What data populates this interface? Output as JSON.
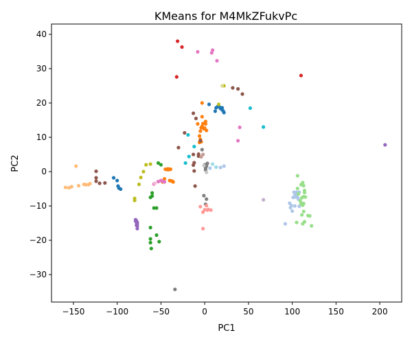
{
  "chart_data": {
    "type": "scatter",
    "title": "KMeans for M4MkZFukvPc",
    "xlabel": "PC1",
    "ylabel": "PC2",
    "xlim": [
      -175,
      225
    ],
    "ylim": [
      -38,
      43
    ],
    "xticks": [
      -150,
      -100,
      -50,
      0,
      50,
      100,
      150,
      200
    ],
    "yticks": [
      -30,
      -20,
      -10,
      0,
      10,
      20,
      30,
      40
    ],
    "grid": false,
    "legend": "none",
    "series": [
      {
        "color": "#1f77b4",
        "points": [
          [
            -104,
            -1.8
          ],
          [
            -100,
            -2.6
          ],
          [
            -99,
            -4.2
          ],
          [
            -98,
            -4.8
          ],
          [
            -96,
            -5.1
          ],
          [
            5,
            19.6
          ],
          [
            12,
            17.6
          ],
          [
            15,
            19.0
          ],
          [
            17,
            18.8
          ],
          [
            18,
            18.4
          ],
          [
            19,
            18.2
          ],
          [
            20,
            18.6
          ],
          [
            21,
            17.7
          ],
          [
            22,
            17.2
          ],
          [
            13,
            18.6
          ]
        ]
      },
      {
        "color": "#ff7f0e",
        "points": [
          [
            -48,
            -3.0
          ],
          [
            -46,
            -2.1
          ],
          [
            -45,
            0.7
          ],
          [
            -43,
            0.6
          ],
          [
            -42,
            0.8
          ],
          [
            -41,
            0.6
          ],
          [
            -40,
            0.7
          ],
          [
            -39,
            0.7
          ],
          [
            -40,
            -2.6
          ],
          [
            -38,
            -2.7
          ],
          [
            -37,
            -2.8
          ],
          [
            -36,
            -3.0
          ],
          [
            -8,
            13.9
          ],
          [
            -6,
            10.4
          ],
          [
            -5,
            11.8
          ],
          [
            -5,
            9.4
          ],
          [
            -4,
            12.8
          ],
          [
            -4,
            8.7
          ],
          [
            -3,
            13.2
          ],
          [
            -3,
            16.0
          ],
          [
            -2,
            14.0
          ],
          [
            -1,
            12.5
          ],
          [
            0,
            12.7
          ],
          [
            1,
            13.9
          ],
          [
            2,
            12.0
          ],
          [
            -3,
            20.0
          ],
          [
            1,
            14.6
          ],
          [
            -6,
            8.5
          ]
        ]
      },
      {
        "color": "#2ca02c",
        "points": [
          [
            -53,
            2.5
          ],
          [
            -50,
            2.0
          ],
          [
            -60,
            -6.2
          ],
          [
            -60,
            -7.1
          ],
          [
            -62,
            -7.5
          ],
          [
            -58,
            -10.6
          ],
          [
            -55,
            -10.6
          ],
          [
            -62,
            -16.3
          ],
          [
            -62,
            -19.6
          ],
          [
            -62,
            -20.7
          ],
          [
            -55,
            -18.5
          ],
          [
            -52,
            -20.4
          ],
          [
            -61,
            -22.4
          ]
        ]
      },
      {
        "color": "#d62728",
        "points": [
          [
            -31,
            38.0
          ],
          [
            -26,
            36.3
          ],
          [
            -32,
            27.6
          ],
          [
            110,
            28.0
          ]
        ]
      },
      {
        "color": "#9467bd",
        "points": [
          [
            -79,
            -14.0
          ],
          [
            -78,
            -14.3
          ],
          [
            -78,
            -14.8
          ],
          [
            -77,
            -15.3
          ],
          [
            -77,
            -15.9
          ],
          [
            -77,
            -16.6
          ],
          [
            -77,
            -14.8
          ],
          [
            -78,
            -15.6
          ],
          [
            -79,
            -14.4
          ],
          [
            206,
            7.8
          ]
        ]
      },
      {
        "color": "#8c564b",
        "points": [
          [
            -120,
            -3.4
          ],
          [
            -124,
            -2.8
          ],
          [
            -114,
            -3.3
          ],
          [
            -124,
            0.1
          ],
          [
            -124,
            -1.8
          ],
          [
            -30,
            7.0
          ],
          [
            -23,
            11.3
          ],
          [
            -13,
            5.0
          ],
          [
            -12,
            2.6
          ],
          [
            -12,
            0.2
          ],
          [
            -11,
            -4.2
          ],
          [
            -7,
            5.1
          ],
          [
            -5,
            9.0
          ],
          [
            -13,
            1.9
          ],
          [
            -10,
            15.5
          ],
          [
            -13,
            17.0
          ],
          [
            32,
            24.4
          ],
          [
            38,
            24.1
          ],
          [
            43,
            22.6
          ],
          [
            -7,
            4.5
          ]
        ]
      },
      {
        "color": "#e377c2",
        "points": [
          [
            -8,
            34.9
          ],
          [
            8,
            34.6
          ],
          [
            9,
            35.4
          ],
          [
            14,
            32.3
          ],
          [
            -58,
            -3.6
          ],
          [
            -53,
            -2.9
          ],
          [
            -50,
            -2.6
          ],
          [
            -48,
            -2.8
          ],
          [
            -46,
            -3.0
          ],
          [
            40,
            12.9
          ],
          [
            38,
            9.0
          ]
        ]
      },
      {
        "color": "#7f7f7f",
        "points": [
          [
            -3,
            6.4
          ],
          [
            0,
            2.0
          ],
          [
            1,
            1.0
          ],
          [
            2,
            1.6
          ],
          [
            3,
            2.4
          ],
          [
            1,
            0.5
          ],
          [
            -1,
            -7.0
          ],
          [
            2,
            -8.0
          ],
          [
            1,
            -9.5
          ],
          [
            -34,
            -34.3
          ]
        ]
      },
      {
        "color": "#bcbd22",
        "points": [
          [
            -80,
            -7.8
          ],
          [
            -80,
            -8.4
          ],
          [
            -75,
            -3.7
          ],
          [
            -73,
            -1.7
          ],
          [
            -70,
            0.0
          ],
          [
            -67,
            2.0
          ],
          [
            -62,
            2.2
          ],
          [
            22,
            25.0
          ],
          [
            16,
            19.6
          ],
          [
            67,
            -8.2
          ]
        ]
      },
      {
        "color": "#17becf",
        "points": [
          [
            -19,
            10.7
          ],
          [
            -12,
            7.3
          ],
          [
            -18,
            4.4
          ],
          [
            -22,
            2.5
          ],
          [
            52,
            18.5
          ],
          [
            67,
            13.0
          ]
        ]
      },
      {
        "color": "#aec7e8",
        "points": [
          [
            97,
            -9.2
          ],
          [
            98,
            -10.5
          ],
          [
            99,
            -9.9
          ],
          [
            100,
            -11.5
          ],
          [
            101,
            -7.5
          ],
          [
            102,
            -6.0
          ],
          [
            103,
            -6.5
          ],
          [
            104,
            -6.9
          ],
          [
            105,
            -6.0
          ],
          [
            106,
            -7.5
          ],
          [
            107,
            -8.0
          ],
          [
            108,
            -6.0
          ],
          [
            103,
            -10.0
          ],
          [
            92,
            -15.2
          ],
          [
            6,
            1.0
          ],
          [
            13,
            1.3
          ],
          [
            18,
            1.2
          ],
          [
            22,
            1.6
          ],
          [
            104,
            -7.4
          ],
          [
            108,
            -10.1
          ]
        ]
      },
      {
        "color": "#ffbb78",
        "points": [
          [
            -159,
            -4.6
          ],
          [
            -155,
            -4.7
          ],
          [
            -152,
            -4.4
          ],
          [
            -147,
            1.6
          ],
          [
            -144,
            -4.1
          ],
          [
            -138,
            -3.7
          ],
          [
            -136,
            -3.8
          ],
          [
            -133,
            -3.8
          ],
          [
            -131,
            -3.5
          ]
        ]
      },
      {
        "color": "#98df8a",
        "points": [
          [
            106,
            -1.2
          ],
          [
            106,
            -4.9
          ],
          [
            107,
            -6.5
          ],
          [
            109,
            -8.5
          ],
          [
            110,
            -9.4
          ],
          [
            111,
            -9.2
          ],
          [
            112,
            -9.8
          ],
          [
            113,
            -11.6
          ],
          [
            111,
            -12.6
          ],
          [
            112,
            -15.2
          ],
          [
            114,
            -14.6
          ],
          [
            105,
            -14.8
          ],
          [
            118,
            -12.8
          ],
          [
            120,
            -12.9
          ],
          [
            122,
            -15.8
          ],
          [
            113,
            -7.3
          ],
          [
            114,
            -6.1
          ],
          [
            112,
            -3.2
          ],
          [
            110,
            -3.8
          ],
          [
            111,
            -7.6
          ],
          [
            113,
            -9.3
          ],
          [
            115,
            -7.4
          ],
          [
            114,
            -5.5
          ],
          [
            113,
            -4.1
          ]
        ]
      },
      {
        "color": "#ff9896",
        "points": [
          [
            -2,
            -11.8
          ],
          [
            0,
            -11.1
          ],
          [
            2,
            -9.9
          ],
          [
            3,
            -11.2
          ],
          [
            4,
            -11.0
          ],
          [
            7,
            -11.2
          ],
          [
            -2,
            -16.6
          ],
          [
            -5,
            -10.2
          ]
        ]
      },
      {
        "color": "#c5b0d5",
        "points": [
          [
            67,
            -8.2
          ]
        ]
      },
      {
        "color": "#c49c94",
        "points": [
          [
            -2,
            5.0
          ],
          [
            -4,
            4.3
          ]
        ]
      },
      {
        "color": "#f7b6d2",
        "points": [
          [
            -57,
            -3.4
          ]
        ]
      },
      {
        "color": "#c7c7c7",
        "points": [
          [
            -1,
            1.8
          ],
          [
            2,
            -0.2
          ]
        ]
      },
      {
        "color": "#dbdb8d",
        "points": [
          [
            20,
            25.0
          ]
        ]
      },
      {
        "color": "#9edae5",
        "points": [
          [
            9,
            2.2
          ],
          [
            13,
            1.3
          ]
        ]
      }
    ]
  }
}
